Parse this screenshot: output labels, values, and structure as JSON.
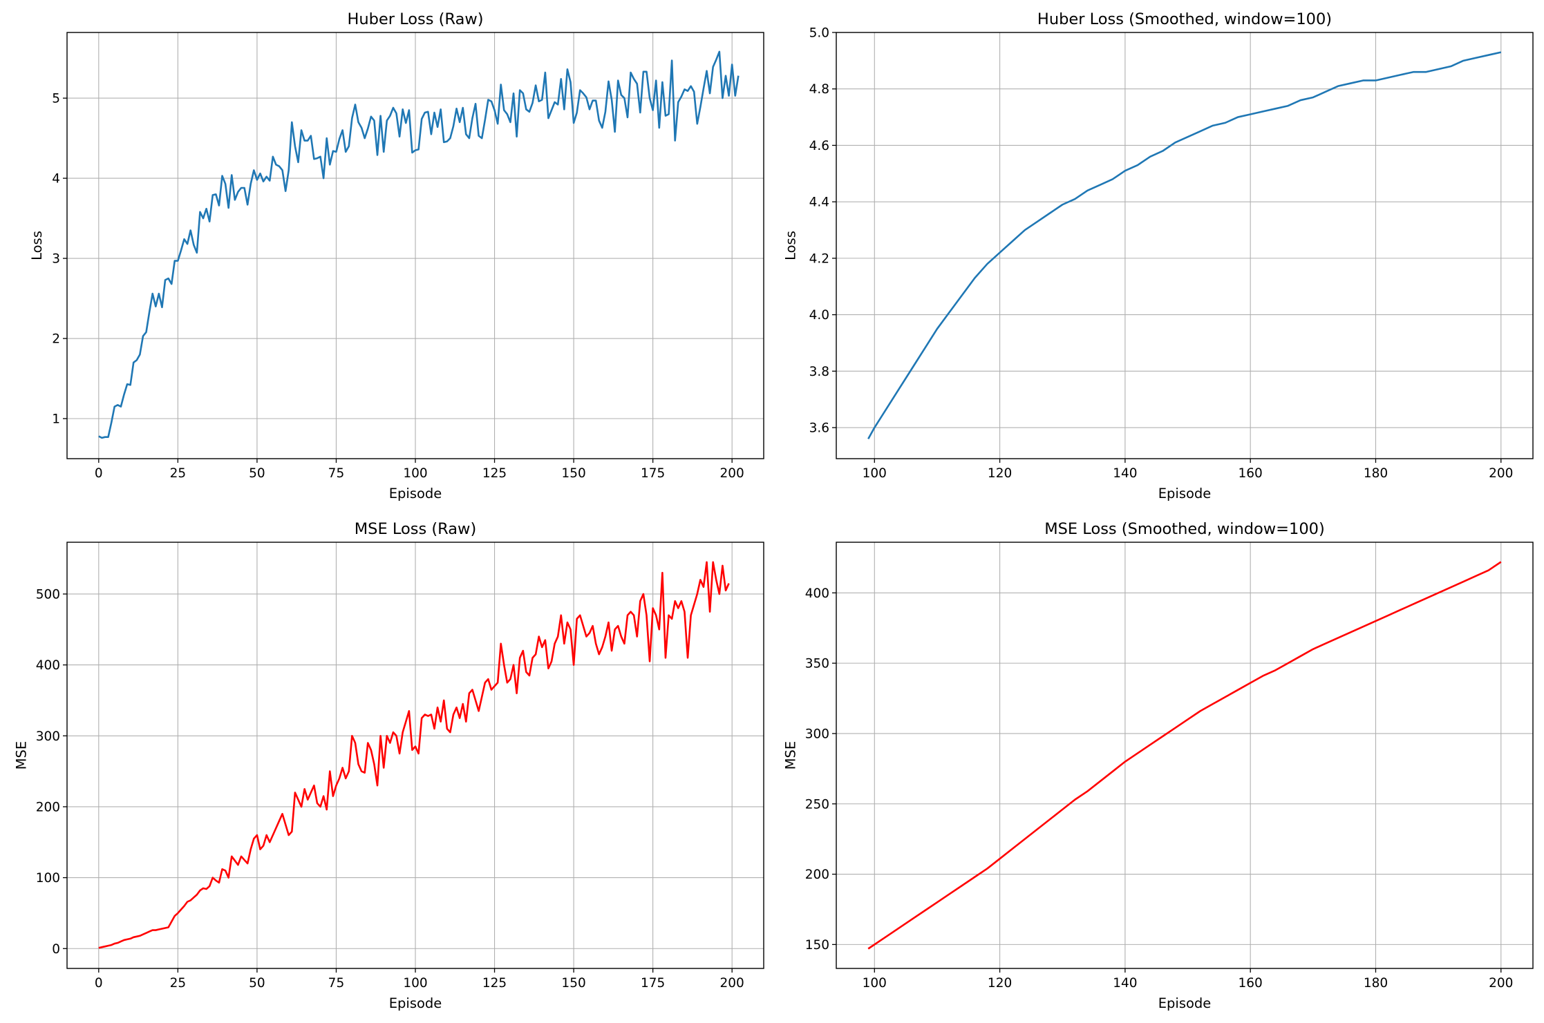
{
  "chart_data": [
    {
      "type": "line",
      "title": "Huber Loss (Raw)",
      "xlabel": "Episode",
      "ylabel": "Loss",
      "xlim": [
        -10,
        210
      ],
      "ylim": [
        0.5,
        5.82
      ],
      "xticks": [
        0,
        25,
        50,
        75,
        100,
        125,
        150,
        175,
        200
      ],
      "yticks": [
        1,
        2,
        3,
        4,
        5
      ],
      "grid": true,
      "color": "#1f77b4",
      "series": [
        {
          "x_start": 0,
          "x_step": 1,
          "values": [
            0.78,
            0.76,
            0.77,
            0.77,
            0.95,
            1.15,
            1.17,
            1.15,
            1.3,
            1.43,
            1.42,
            1.7,
            1.73,
            1.8,
            2.03,
            2.08,
            2.33,
            2.56,
            2.4,
            2.56,
            2.39,
            2.73,
            2.75,
            2.68,
            2.97,
            2.97,
            3.1,
            3.24,
            3.18,
            3.35,
            3.17,
            3.07,
            3.58,
            3.5,
            3.62,
            3.46,
            3.79,
            3.8,
            3.66,
            4.03,
            3.93,
            3.63,
            4.04,
            3.73,
            3.83,
            3.88,
            3.88,
            3.67,
            3.93,
            4.1,
            3.98,
            4.06,
            3.96,
            4.02,
            3.97,
            4.27,
            4.17,
            4.15,
            4.1,
            3.84,
            4.1,
            4.7,
            4.4,
            4.2,
            4.6,
            4.47,
            4.47,
            4.53,
            4.24,
            4.25,
            4.27,
            4.0,
            4.5,
            4.17,
            4.34,
            4.33,
            4.49,
            4.6,
            4.33,
            4.4,
            4.75,
            4.92,
            4.7,
            4.63,
            4.5,
            4.62,
            4.77,
            4.72,
            4.29,
            4.78,
            4.33,
            4.72,
            4.78,
            4.88,
            4.81,
            4.52,
            4.86,
            4.69,
            4.85,
            4.32,
            4.35,
            4.36,
            4.74,
            4.82,
            4.83,
            4.55,
            4.82,
            4.64,
            4.86,
            4.45,
            4.46,
            4.5,
            4.65,
            4.87,
            4.7,
            4.88,
            4.55,
            4.5,
            4.75,
            4.93,
            4.53,
            4.5,
            4.73,
            4.98,
            4.96,
            4.85,
            4.68,
            5.17,
            4.85,
            4.8,
            4.7,
            5.06,
            4.52,
            5.1,
            5.06,
            4.86,
            4.83,
            4.94,
            5.16,
            4.96,
            4.98,
            5.32,
            4.75,
            4.85,
            4.95,
            4.92,
            5.24,
            4.86,
            5.36,
            5.2,
            4.69,
            4.82,
            5.1,
            5.06,
            5.01,
            4.86,
            4.97,
            4.97,
            4.72,
            4.63,
            4.83,
            5.21,
            4.98,
            4.58,
            5.22,
            5.04,
            5.0,
            4.76,
            5.32,
            5.24,
            5.18,
            4.82,
            5.33,
            5.33,
            5.0,
            4.85,
            5.22,
            4.63,
            5.2,
            4.78,
            4.8,
            5.47,
            4.47,
            4.95,
            5.02,
            5.11,
            5.09,
            5.15,
            5.08,
            4.68,
            4.89,
            5.12,
            5.34,
            5.06,
            5.39,
            5.48,
            5.58,
            5.0,
            5.28,
            5.03,
            5.42,
            5.03,
            5.28
          ]
        }
      ]
    },
    {
      "type": "line",
      "title": "Huber Loss (Smoothed, window=100)",
      "xlabel": "Episode",
      "ylabel": "Loss",
      "xlim": [
        93.9,
        205.1
      ],
      "ylim": [
        3.49,
        5.0
      ],
      "xticks": [
        100,
        120,
        140,
        160,
        180,
        200
      ],
      "yticks": [
        3.6,
        3.8,
        4.0,
        4.2,
        4.4,
        4.6,
        4.8,
        5.0
      ],
      "ytick_labels": [
        "3.6",
        "3.8",
        "4.0",
        "4.2",
        "4.4",
        "4.6",
        "4.8",
        "5.0"
      ],
      "grid": true,
      "color": "#1f77b4",
      "series": [
        {
          "x": [
            99,
            100,
            102,
            104,
            106,
            108,
            110,
            112,
            114,
            116,
            118,
            120,
            122,
            124,
            126,
            128,
            130,
            132,
            134,
            136,
            138,
            140,
            142,
            144,
            146,
            148,
            150,
            152,
            154,
            156,
            158,
            160,
            162,
            164,
            166,
            168,
            170,
            172,
            174,
            176,
            178,
            180,
            182,
            184,
            186,
            188,
            190,
            192,
            194,
            196,
            198,
            200
          ],
          "values": [
            3.56,
            3.6,
            3.67,
            3.74,
            3.81,
            3.88,
            3.95,
            4.01,
            4.07,
            4.13,
            4.18,
            4.22,
            4.26,
            4.3,
            4.33,
            4.36,
            4.39,
            4.41,
            4.44,
            4.46,
            4.48,
            4.51,
            4.53,
            4.56,
            4.58,
            4.61,
            4.63,
            4.65,
            4.67,
            4.68,
            4.7,
            4.71,
            4.72,
            4.73,
            4.74,
            4.76,
            4.77,
            4.79,
            4.81,
            4.82,
            4.83,
            4.83,
            4.84,
            4.85,
            4.86,
            4.86,
            4.87,
            4.88,
            4.9,
            4.91,
            4.92,
            4.93
          ]
        }
      ]
    },
    {
      "type": "line",
      "title": "MSE Loss (Raw)",
      "xlabel": "Episode",
      "ylabel": "MSE",
      "xlim": [
        -10,
        210
      ],
      "ylim": [
        -28,
        573
      ],
      "xticks": [
        0,
        25,
        50,
        75,
        100,
        125,
        150,
        175,
        200
      ],
      "yticks": [
        0,
        100,
        200,
        300,
        400,
        500
      ],
      "grid": true,
      "color": "#ff0000",
      "series": [
        {
          "x_start": 0,
          "x_step": 1,
          "values": [
            1,
            2,
            3,
            4,
            5,
            7,
            8,
            10,
            12,
            13,
            14,
            16,
            17,
            18,
            20,
            22,
            24,
            26,
            26,
            27,
            28,
            29,
            30,
            38,
            46,
            50,
            55,
            60,
            66,
            68,
            72,
            76,
            82,
            85,
            84,
            88,
            100,
            96,
            93,
            112,
            110,
            100,
            130,
            124,
            118,
            130,
            125,
            120,
            140,
            155,
            160,
            140,
            145,
            160,
            150,
            160,
            170,
            180,
            190,
            175,
            160,
            165,
            220,
            210,
            200,
            225,
            210,
            220,
            230,
            205,
            200,
            215,
            196,
            250,
            215,
            230,
            240,
            255,
            240,
            250,
            300,
            290,
            260,
            250,
            248,
            290,
            280,
            260,
            230,
            300,
            255,
            300,
            290,
            305,
            300,
            275,
            305,
            320,
            335,
            280,
            285,
            275,
            325,
            330,
            328,
            330,
            310,
            340,
            320,
            350,
            310,
            305,
            330,
            340,
            325,
            345,
            320,
            360,
            365,
            350,
            335,
            355,
            375,
            380,
            365,
            370,
            375,
            430,
            400,
            375,
            380,
            400,
            360,
            410,
            420,
            390,
            385,
            410,
            415,
            440,
            425,
            435,
            395,
            405,
            430,
            440,
            470,
            430,
            460,
            450,
            400,
            465,
            470,
            455,
            440,
            445,
            455,
            430,
            415,
            425,
            440,
            460,
            420,
            450,
            455,
            440,
            430,
            470,
            475,
            470,
            440,
            490,
            500,
            470,
            405,
            480,
            470,
            450,
            530,
            410,
            470,
            465,
            490,
            480,
            490,
            475,
            410,
            470,
            485,
            500,
            520,
            510,
            545,
            475,
            545,
            520,
            500,
            540,
            505,
            515
          ]
        }
      ]
    },
    {
      "type": "line",
      "title": "MSE Loss (Smoothed, window=100)",
      "xlabel": "Episode",
      "ylabel": "MSE",
      "xlim": [
        93.9,
        205.1
      ],
      "ylim": [
        133,
        436
      ],
      "xticks": [
        100,
        120,
        140,
        160,
        180,
        200
      ],
      "yticks": [
        150,
        200,
        250,
        300,
        350,
        400
      ],
      "grid": true,
      "color": "#ff0000",
      "series": [
        {
          "x": [
            99,
            100,
            102,
            104,
            106,
            108,
            110,
            112,
            114,
            116,
            118,
            120,
            122,
            124,
            126,
            128,
            130,
            132,
            134,
            136,
            138,
            140,
            142,
            144,
            146,
            148,
            150,
            152,
            154,
            156,
            158,
            160,
            162,
            164,
            166,
            168,
            170,
            172,
            174,
            176,
            178,
            180,
            182,
            184,
            186,
            188,
            190,
            192,
            194,
            196,
            198,
            200
          ],
          "values": [
            147,
            150,
            156,
            162,
            168,
            174,
            180,
            186,
            192,
            198,
            204,
            211,
            218,
            225,
            232,
            239,
            246,
            253,
            259,
            266,
            273,
            280,
            286,
            292,
            298,
            304,
            310,
            316,
            321,
            326,
            331,
            336,
            341,
            345,
            350,
            355,
            360,
            364,
            368,
            372,
            376,
            380,
            384,
            388,
            392,
            396,
            400,
            404,
            408,
            412,
            416,
            422
          ]
        }
      ]
    }
  ]
}
